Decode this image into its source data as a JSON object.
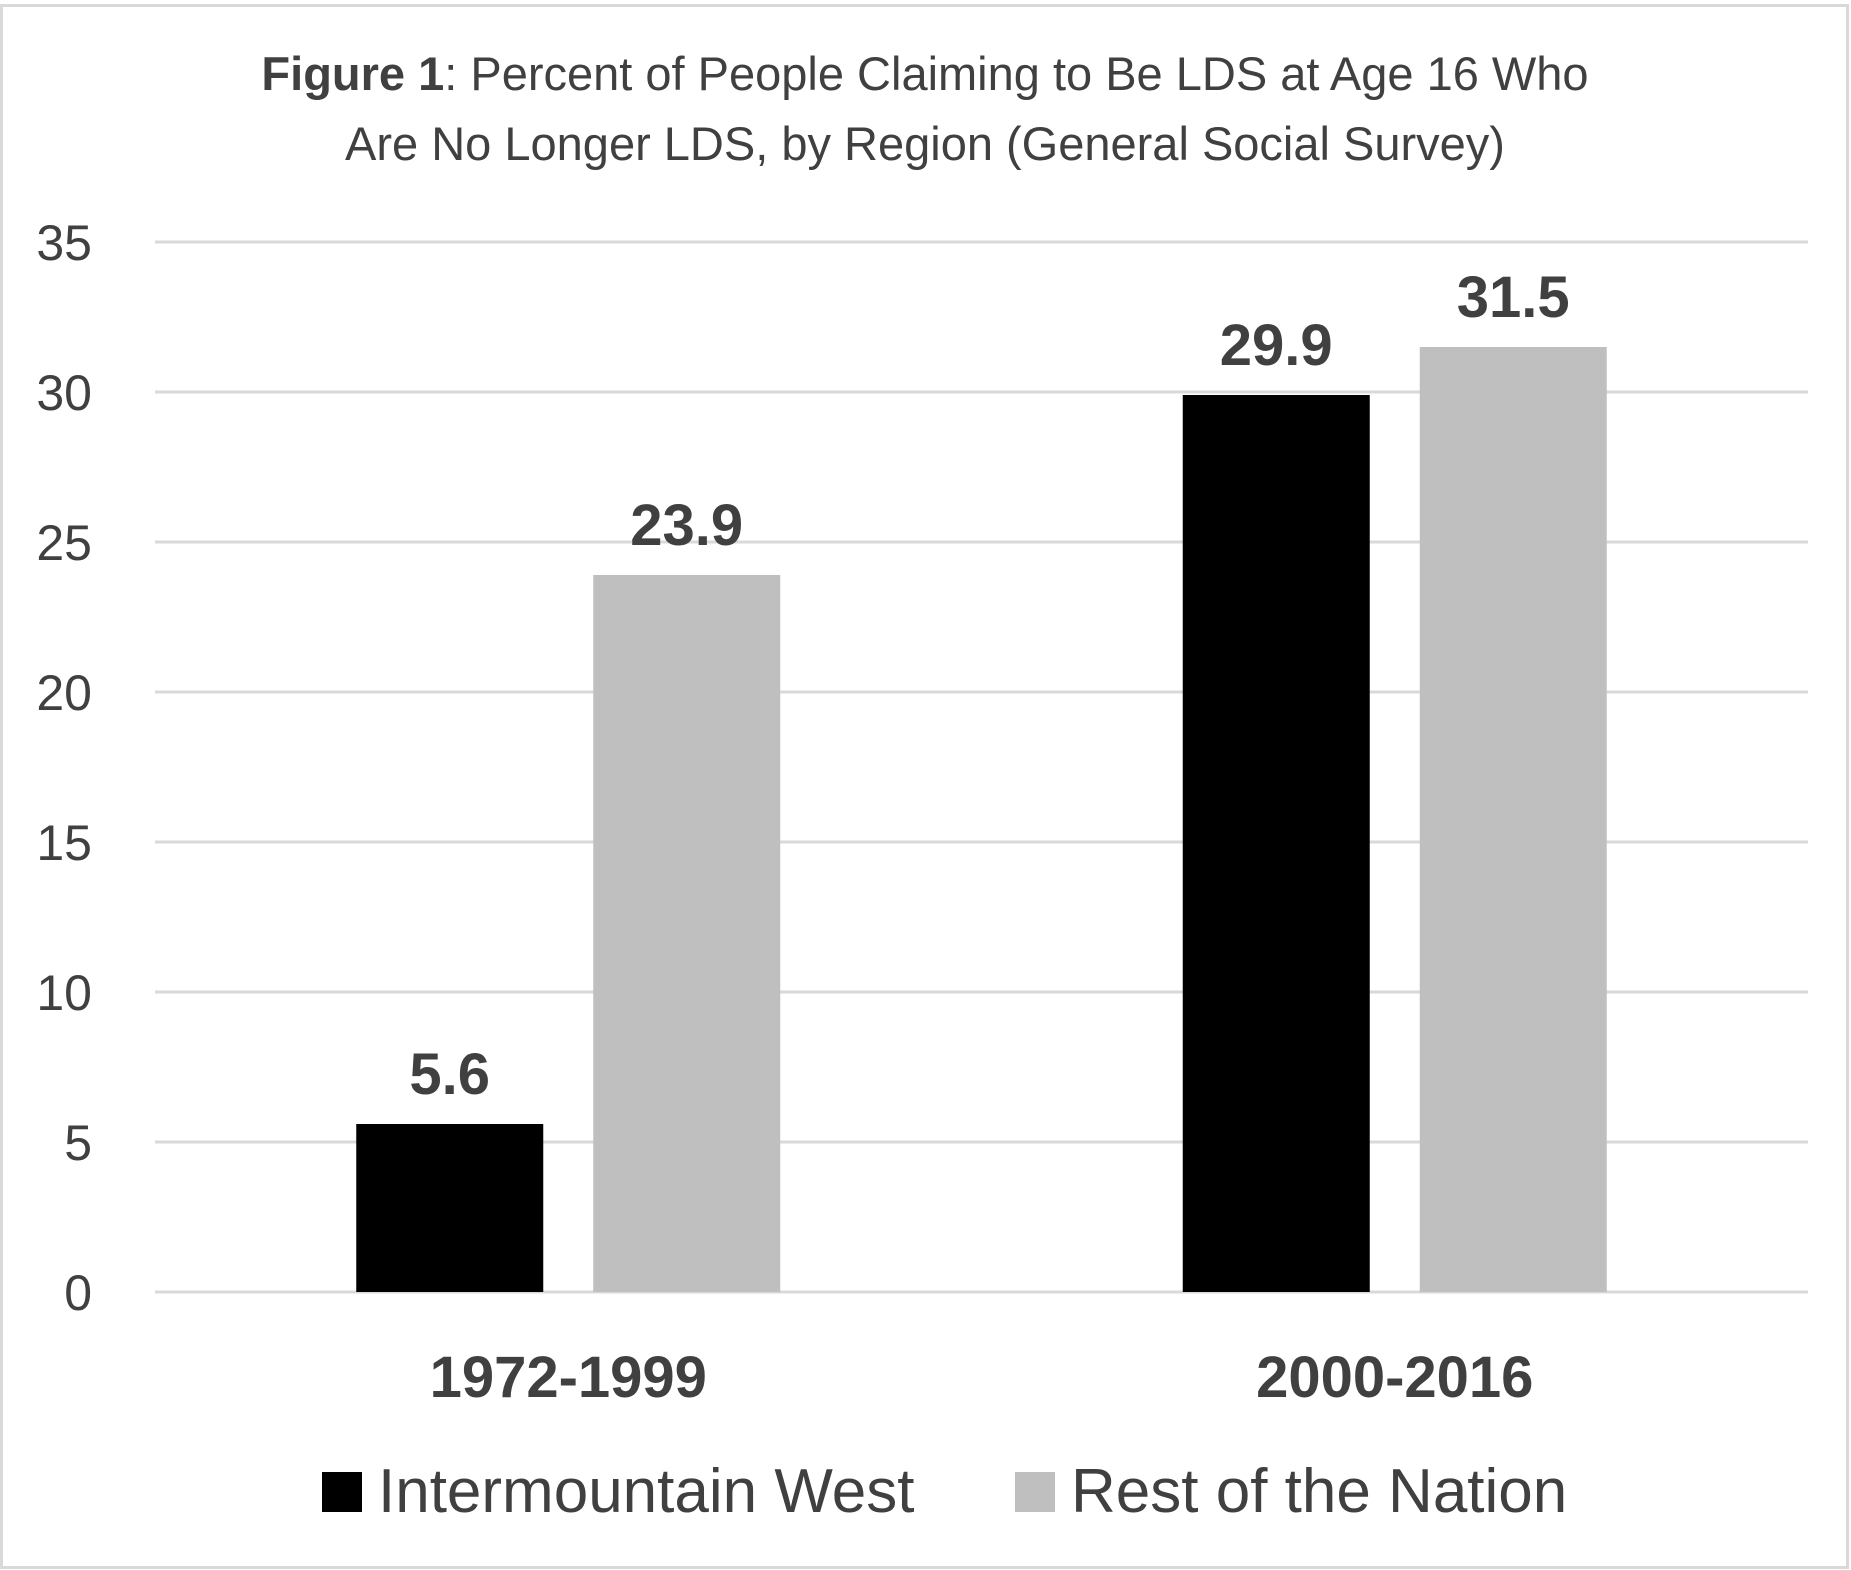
{
  "chart_data": {
    "type": "bar",
    "title_bold": "Figure 1",
    "title_line1": ": Percent of People Claiming to Be LDS at Age 16 Who",
    "title_line2": "Are No Longer LDS, by Region (General Social Survey)",
    "categories": [
      "1972-1999",
      "2000-2016"
    ],
    "series": [
      {
        "name": "Intermountain West",
        "values": [
          5.6,
          29.9
        ],
        "color": "#000000"
      },
      {
        "name": "Rest of the Nation",
        "values": [
          23.9,
          31.5
        ],
        "color": "#bfbfbf"
      }
    ],
    "data_labels": [
      [
        "5.6",
        "29.9"
      ],
      [
        "23.9",
        "31.5"
      ]
    ],
    "y_ticks": [
      "0",
      "5",
      "10",
      "15",
      "20",
      "25",
      "30",
      "35"
    ],
    "ylim": [
      0,
      35
    ],
    "grid": true,
    "legend_position": "bottom",
    "colors": {
      "text": "#404040",
      "grid": "#d9d9d9",
      "border": "#d9d9d9"
    }
  }
}
